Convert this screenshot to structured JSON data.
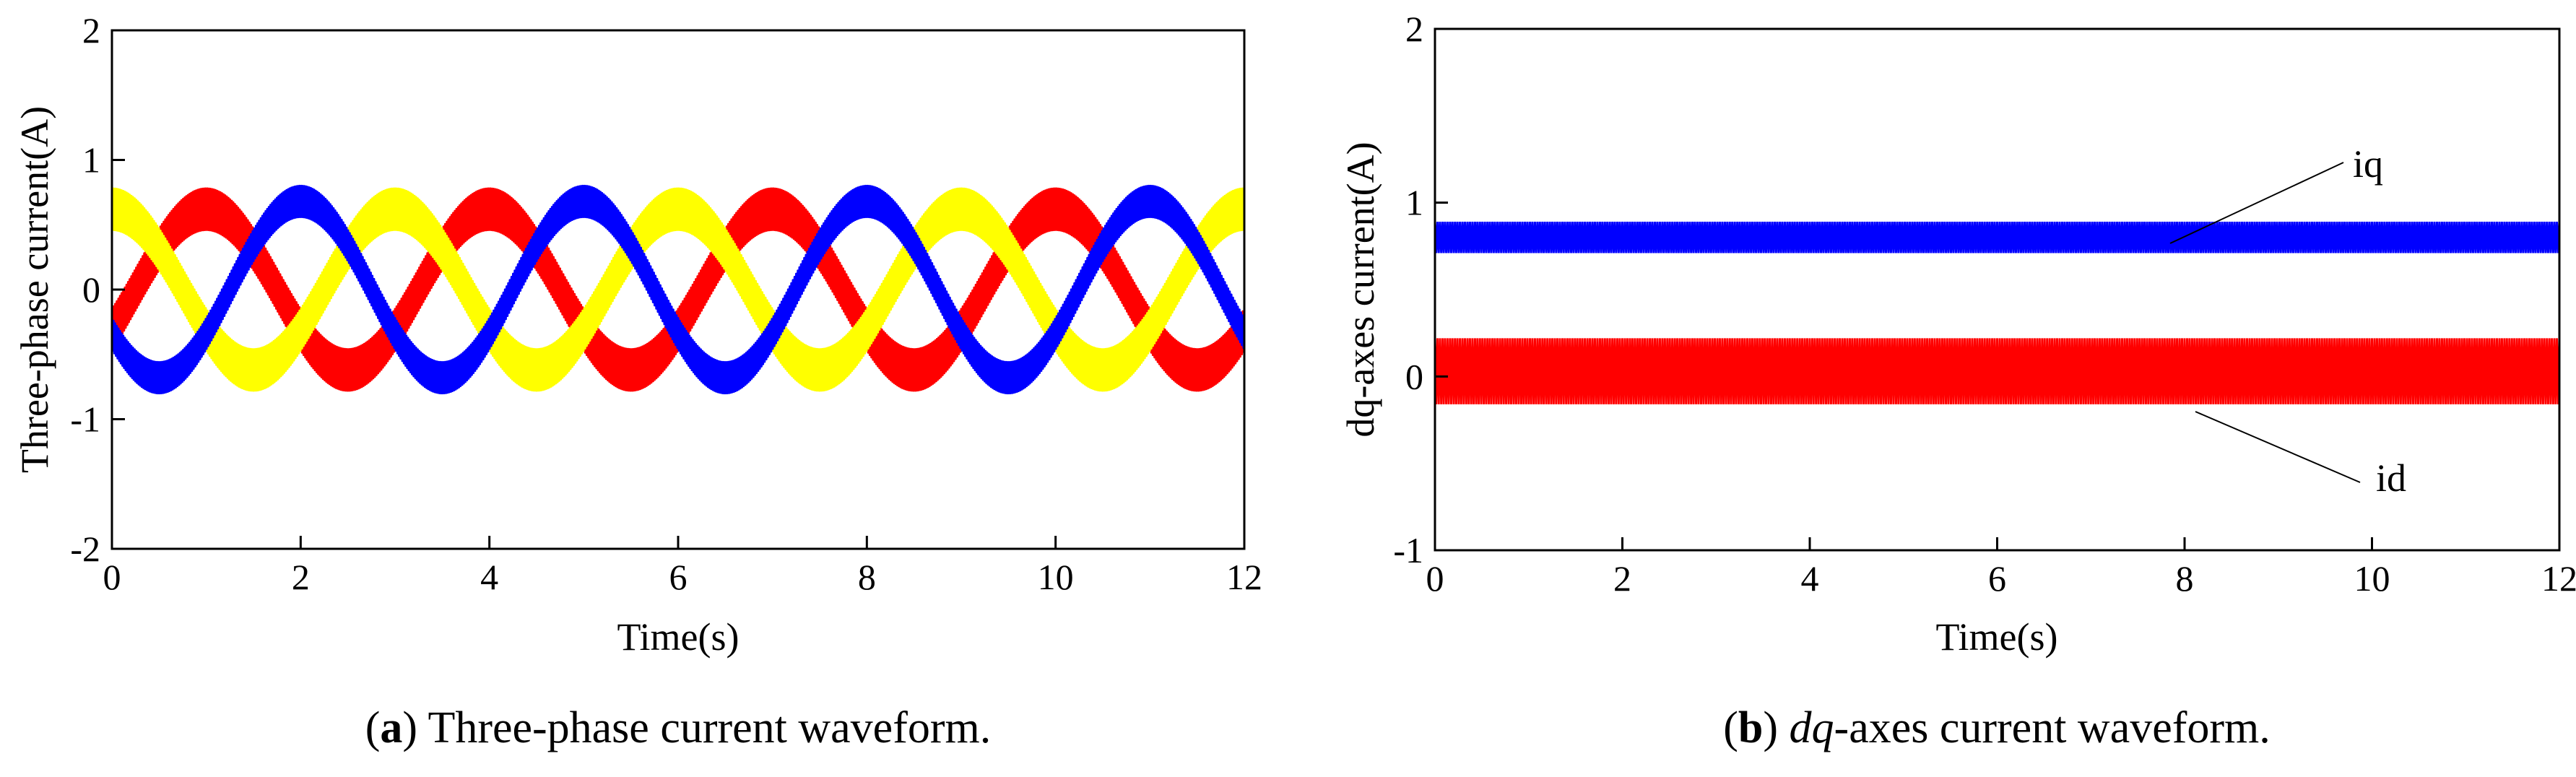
{
  "chart_data": [
    {
      "type": "line",
      "panel": "a",
      "caption": {
        "letter": "a",
        "text": "Three-phase current waveform."
      },
      "xlabel": "Time(s)",
      "ylabel": "Three-phase current(A)",
      "xlim": [
        0,
        12
      ],
      "ylim": [
        -2,
        2
      ],
      "xticks": [
        "0",
        "2",
        "4",
        "6",
        "8",
        "10",
        "12"
      ],
      "yticks": [
        "-2",
        "-1",
        "0",
        "1",
        "2"
      ],
      "grid": false,
      "series": [
        {
          "color": "#ff0000",
          "amplitude": 0.62,
          "ripple": 0.16,
          "period": 3.0,
          "phase_deg": 330,
          "values_desc": "sinusoid"
        },
        {
          "color": "#ffff00",
          "amplitude": 0.62,
          "ripple": 0.16,
          "period": 3.0,
          "phase_deg": 90,
          "values_desc": "sinusoid"
        },
        {
          "color": "#0000ff",
          "amplitude": 0.68,
          "ripple": 0.12,
          "period": 3.0,
          "phase_deg": 210,
          "values_desc": "sinusoid"
        }
      ]
    },
    {
      "type": "line",
      "panel": "b",
      "caption": {
        "letter": "b",
        "italic": "dq",
        "text": "-axes current waveform."
      },
      "xlabel": "Time(s)",
      "ylabel": "dq-axes current(A)",
      "xlim": [
        0,
        12
      ],
      "ylim": [
        -1,
        2
      ],
      "xticks": [
        "0",
        "2",
        "4",
        "6",
        "8",
        "10",
        "12"
      ],
      "yticks": [
        "-1",
        "0",
        "1",
        "2"
      ],
      "grid": false,
      "series": [
        {
          "name": "iq",
          "color": "#0000ff",
          "mean": 0.8,
          "ripple": 0.09
        },
        {
          "name": "id",
          "color": "#ff0000",
          "mean": 0.03,
          "ripple": 0.19
        }
      ]
    }
  ]
}
